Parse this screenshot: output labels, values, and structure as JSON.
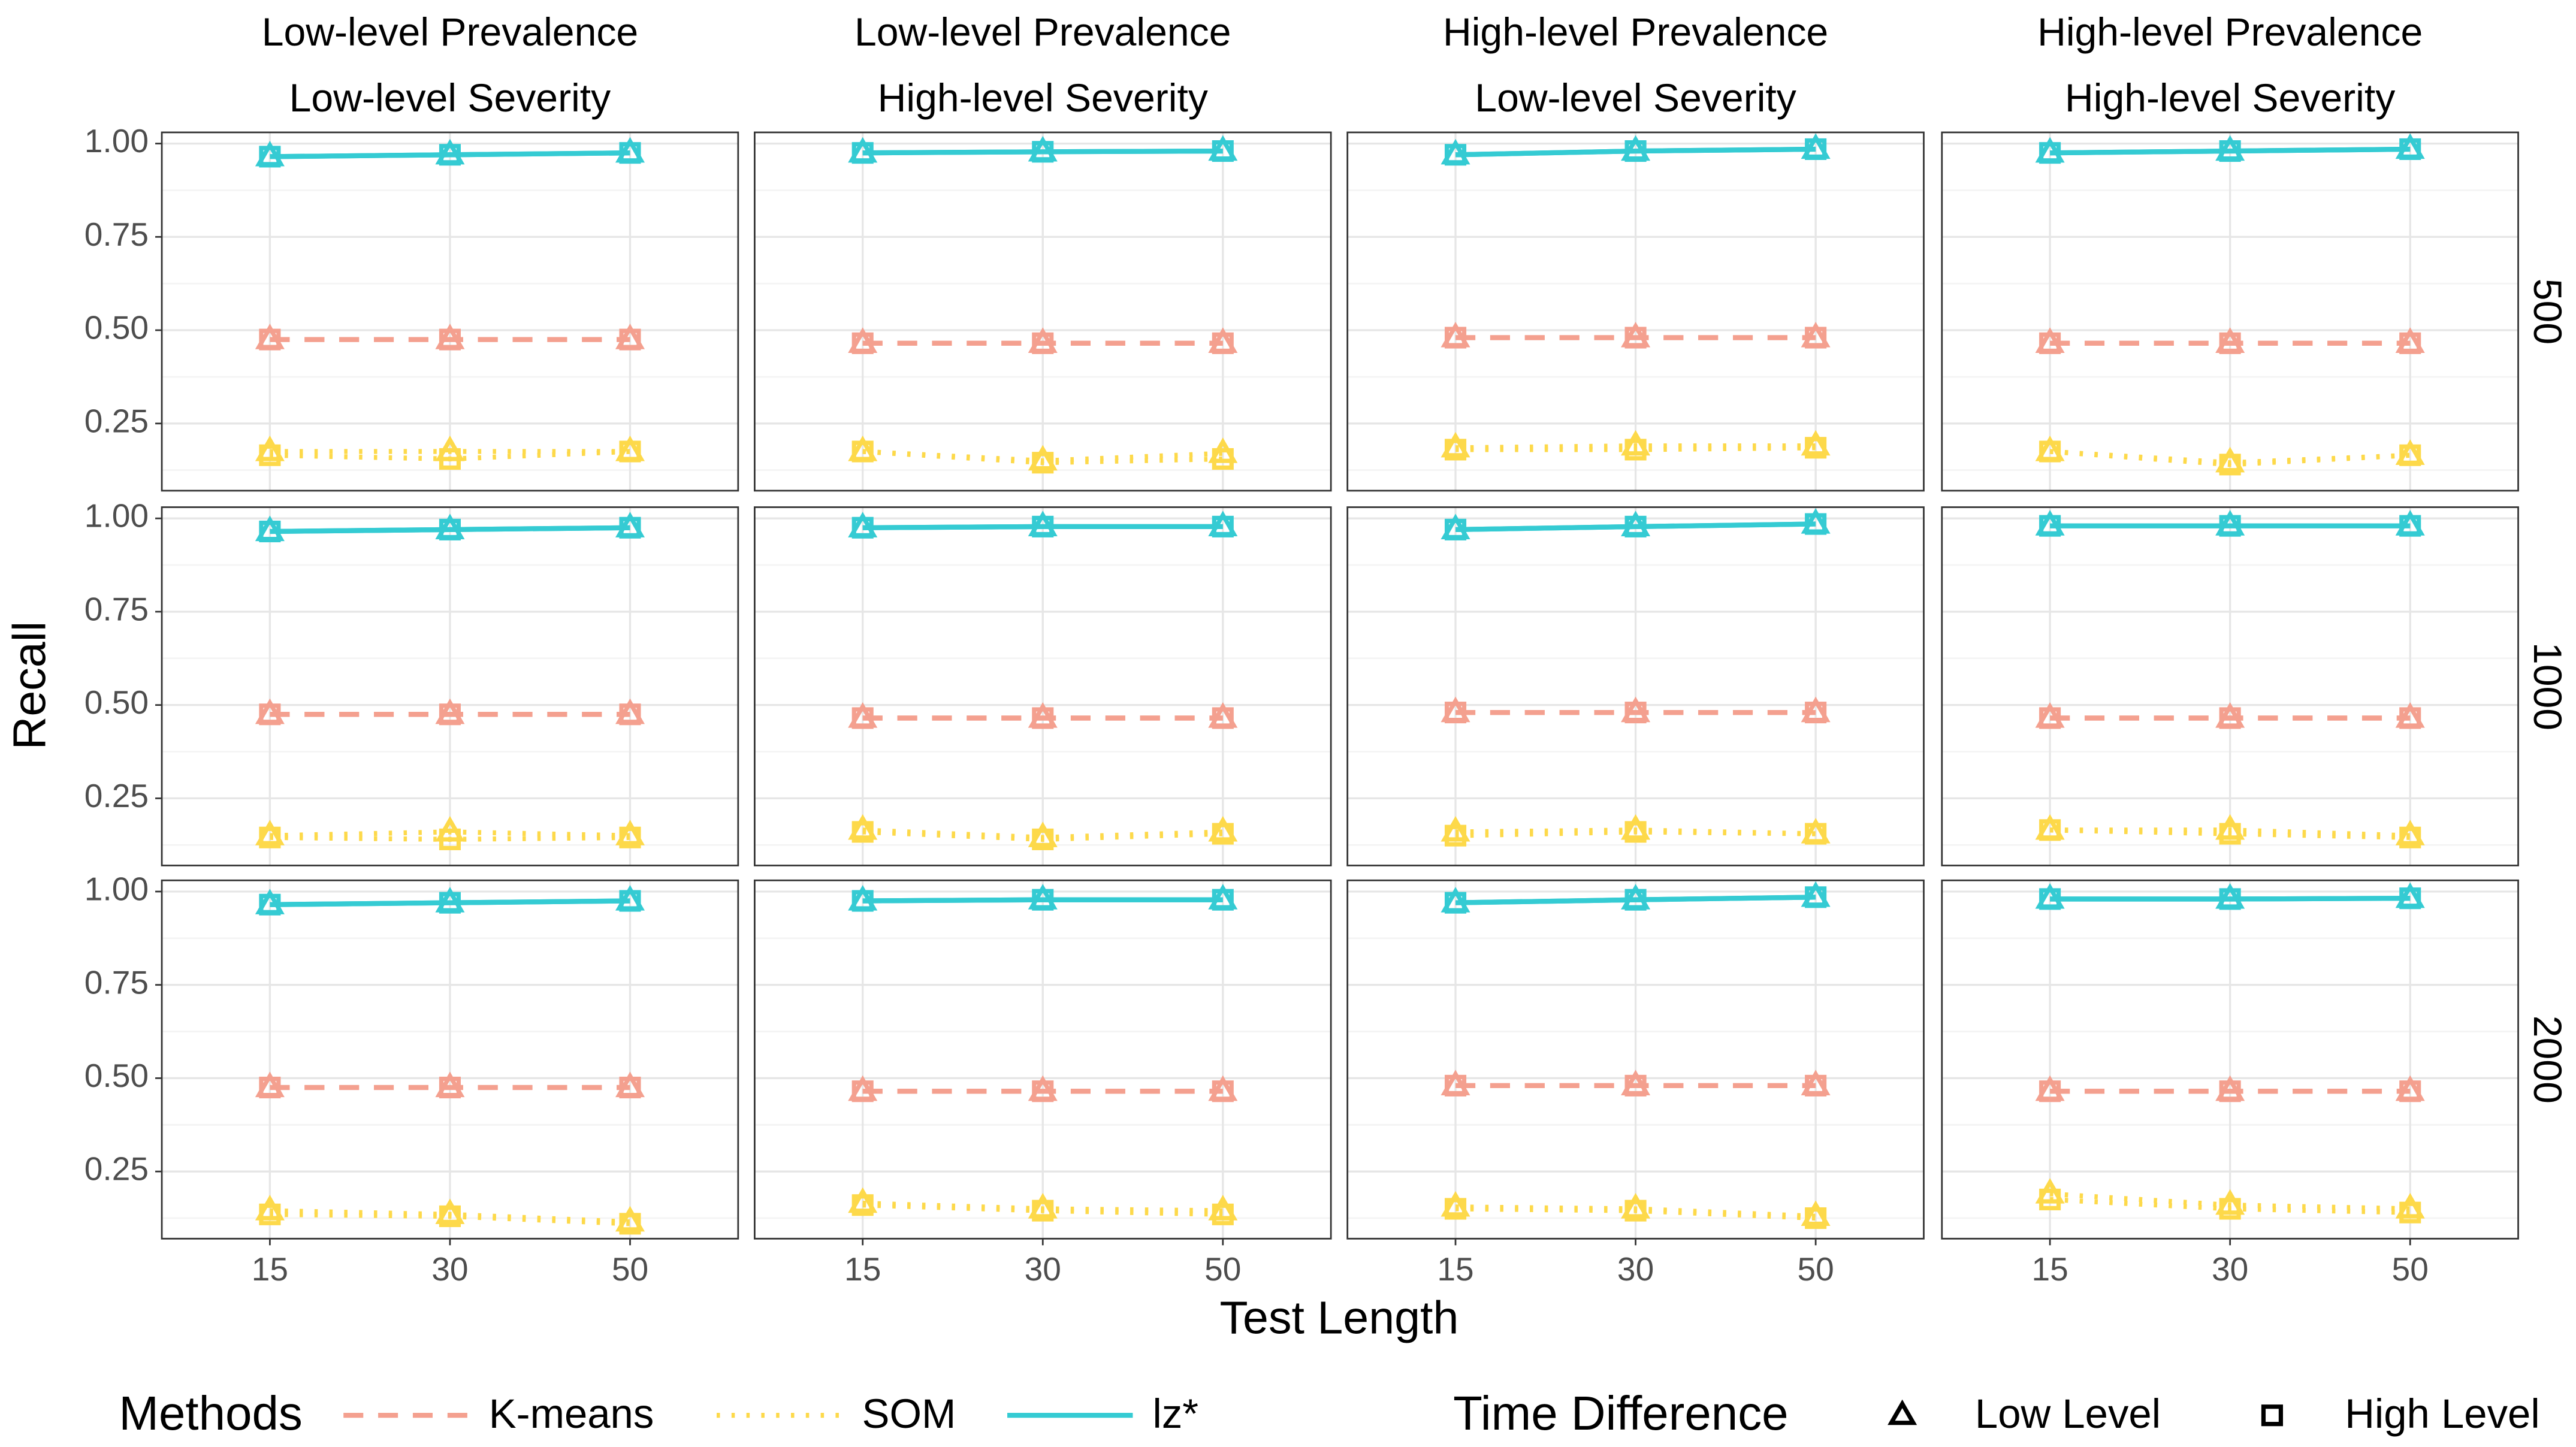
{
  "chart_data": {
    "type": "line",
    "x_label": "Test Length",
    "y_label": "Recall",
    "categories": [
      "15",
      "30",
      "50"
    ],
    "ylim": [
      0.07,
      1.03
    ],
    "yticks": [
      0.25,
      {
        "value": 0.5,
        "label": "0.50"
      },
      0.75,
      {
        "value": 1,
        "label": "1.00"
      }
    ],
    "grid": true,
    "column_labels": [
      [
        "Low-level Prevalence",
        "Low-level Severity"
      ],
      [
        "Low-level Prevalence",
        "High-level Severity"
      ],
      [
        "High-level Prevalence",
        "Low-level Severity"
      ],
      [
        "High-level Prevalence",
        "High-level Severity"
      ]
    ],
    "row_labels": [
      "500",
      "1000",
      "2000"
    ],
    "methods_title": "Methods",
    "methods": [
      {
        "name": "K-means",
        "color": "#f4a08f",
        "dash": "dashed"
      },
      {
        "name": "SOM",
        "color": "#fdd94a",
        "dash": "dotted"
      },
      {
        "name": "lz*",
        "color": "#35cbd3",
        "dash": "solid"
      }
    ],
    "levels_title": "Time Difference",
    "levels": [
      {
        "name": "Low Level",
        "shape": "triangle"
      },
      {
        "name": "High Level",
        "shape": "square"
      }
    ],
    "panels": [
      [
        [
          [
            [
              0.475,
              0.475,
              0.475
            ],
            [
              0.475,
              0.475,
              0.475
            ]
          ],
          [
            [
              0.175,
              0.175,
              0.175
            ],
            [
              0.165,
              0.155,
              0.175
            ]
          ],
          [
            [
              0.965,
              0.97,
              0.975
            ],
            [
              0.965,
              0.97,
              0.975
            ]
          ]
        ],
        [
          [
            [
              0.465,
              0.465,
              0.465
            ],
            [
              0.465,
              0.465,
              0.465
            ]
          ],
          [
            [
              0.175,
              0.15,
              0.17
            ],
            [
              0.175,
              0.145,
              0.155
            ]
          ],
          [
            [
              0.975,
              0.978,
              0.98
            ],
            [
              0.975,
              0.978,
              0.98
            ]
          ]
        ],
        [
          [
            [
              0.48,
              0.48,
              0.48
            ],
            [
              0.48,
              0.48,
              0.48
            ]
          ],
          [
            [
              0.185,
              0.19,
              0.19
            ],
            [
              0.18,
              0.18,
              0.185
            ]
          ],
          [
            [
              0.97,
              0.98,
              0.985
            ],
            [
              0.97,
              0.98,
              0.985
            ]
          ]
        ],
        [
          [
            [
              0.465,
              0.465,
              0.465
            ],
            [
              0.465,
              0.465,
              0.465
            ]
          ],
          [
            [
              0.175,
              0.145,
              0.165
            ],
            [
              0.175,
              0.14,
              0.165
            ]
          ],
          [
            [
              0.975,
              0.98,
              0.985
            ],
            [
              0.975,
              0.98,
              0.985
            ]
          ]
        ]
      ],
      [
        [
          [
            [
              0.475,
              0.475,
              0.475
            ],
            [
              0.475,
              0.475,
              0.475
            ]
          ],
          [
            [
              0.15,
              0.16,
              0.15
            ],
            [
              0.145,
              0.14,
              0.145
            ]
          ],
          [
            [
              0.965,
              0.97,
              0.975
            ],
            [
              0.965,
              0.97,
              0.975
            ]
          ]
        ],
        [
          [
            [
              0.465,
              0.465,
              0.465
            ],
            [
              0.465,
              0.465,
              0.465
            ]
          ],
          [
            [
              0.165,
              0.145,
              0.16
            ],
            [
              0.16,
              0.14,
              0.155
            ]
          ],
          [
            [
              0.975,
              0.978,
              0.978
            ],
            [
              0.975,
              0.978,
              0.978
            ]
          ]
        ],
        [
          [
            [
              0.48,
              0.48,
              0.48
            ],
            [
              0.48,
              0.48,
              0.48
            ]
          ],
          [
            [
              0.16,
              0.165,
              0.155
            ],
            [
              0.15,
              0.16,
              0.155
            ]
          ],
          [
            [
              0.97,
              0.978,
              0.985
            ],
            [
              0.97,
              0.978,
              0.985
            ]
          ]
        ],
        [
          [
            [
              0.465,
              0.465,
              0.465
            ],
            [
              0.465,
              0.465,
              0.465
            ]
          ],
          [
            [
              0.165,
              0.165,
              0.15
            ],
            [
              0.165,
              0.155,
              0.145
            ]
          ],
          [
            [
              0.98,
              0.98,
              0.98
            ],
            [
              0.98,
              0.98,
              0.98
            ]
          ]
        ]
      ],
      [
        [
          [
            [
              0.475,
              0.475,
              0.475
            ],
            [
              0.475,
              0.475,
              0.475
            ]
          ],
          [
            [
              0.145,
              0.135,
              0.115
            ],
            [
              0.135,
              0.13,
              0.11
            ]
          ],
          [
            [
              0.965,
              0.97,
              0.975
            ],
            [
              0.965,
              0.97,
              0.975
            ]
          ]
        ],
        [
          [
            [
              0.465,
              0.465,
              0.465
            ],
            [
              0.465,
              0.465,
              0.465
            ]
          ],
          [
            [
              0.165,
              0.15,
              0.145
            ],
            [
              0.16,
              0.145,
              0.135
            ]
          ],
          [
            [
              0.975,
              0.978,
              0.978
            ],
            [
              0.975,
              0.978,
              0.978
            ]
          ]
        ],
        [
          [
            [
              0.48,
              0.48,
              0.48
            ],
            [
              0.48,
              0.48,
              0.48
            ]
          ],
          [
            [
              0.155,
              0.15,
              0.13
            ],
            [
              0.15,
              0.145,
              0.125
            ]
          ],
          [
            [
              0.97,
              0.978,
              0.985
            ],
            [
              0.97,
              0.978,
              0.985
            ]
          ]
        ],
        [
          [
            [
              0.465,
              0.465,
              0.465
            ],
            [
              0.465,
              0.465,
              0.465
            ]
          ],
          [
            [
              0.19,
              0.16,
              0.15
            ],
            [
              0.175,
              0.15,
              0.14
            ]
          ],
          [
            [
              0.98,
              0.98,
              0.982
            ],
            [
              0.98,
              0.98,
              0.982
            ]
          ]
        ]
      ]
    ]
  }
}
